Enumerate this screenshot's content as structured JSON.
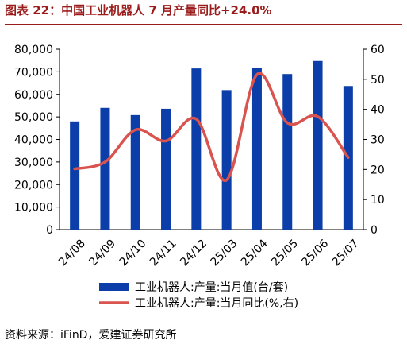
{
  "title": "图表 22：中国工业机器人 7 月产量同比+24.0%",
  "source": "资料来源：iFinD，爱建证券研究所",
  "colors": {
    "title": "#9b1c1c",
    "bar": "#0b3ea8",
    "line": "#d9534f",
    "axis": "#000000"
  },
  "chart_data": {
    "type": "bar+line",
    "title": "图表 22：中国工业机器人 7 月产量同比+24.0%",
    "categories": [
      "24/08",
      "24/09",
      "24/10",
      "24/11",
      "24/12",
      "25/03",
      "25/04",
      "25/05",
      "25/06",
      "25/07"
    ],
    "series": [
      {
        "name": "工业机器人:产量:当月值(台/套)",
        "type": "bar",
        "axis": "left",
        "values": [
          48000,
          54000,
          50800,
          53600,
          71500,
          61900,
          71600,
          69000,
          74800,
          63700
        ]
      },
      {
        "name": "工业机器人:产量:当月同比(%,右)",
        "type": "line",
        "axis": "right",
        "smooth": true,
        "values": [
          20.2,
          22.5,
          33.2,
          29.5,
          36.8,
          16.5,
          51.6,
          35.5,
          37.6,
          24.0
        ]
      }
    ],
    "yleft": {
      "lim": [
        0,
        80000
      ],
      "ticks": [
        "0",
        "10,000",
        "20,000",
        "30,000",
        "40,000",
        "50,000",
        "60,000",
        "70,000",
        "80,000"
      ]
    },
    "yright": {
      "lim": [
        0,
        60
      ],
      "ticks": [
        "0",
        "10",
        "20",
        "30",
        "40",
        "50",
        "60"
      ]
    },
    "legend_position": "bottom",
    "grid": false
  }
}
